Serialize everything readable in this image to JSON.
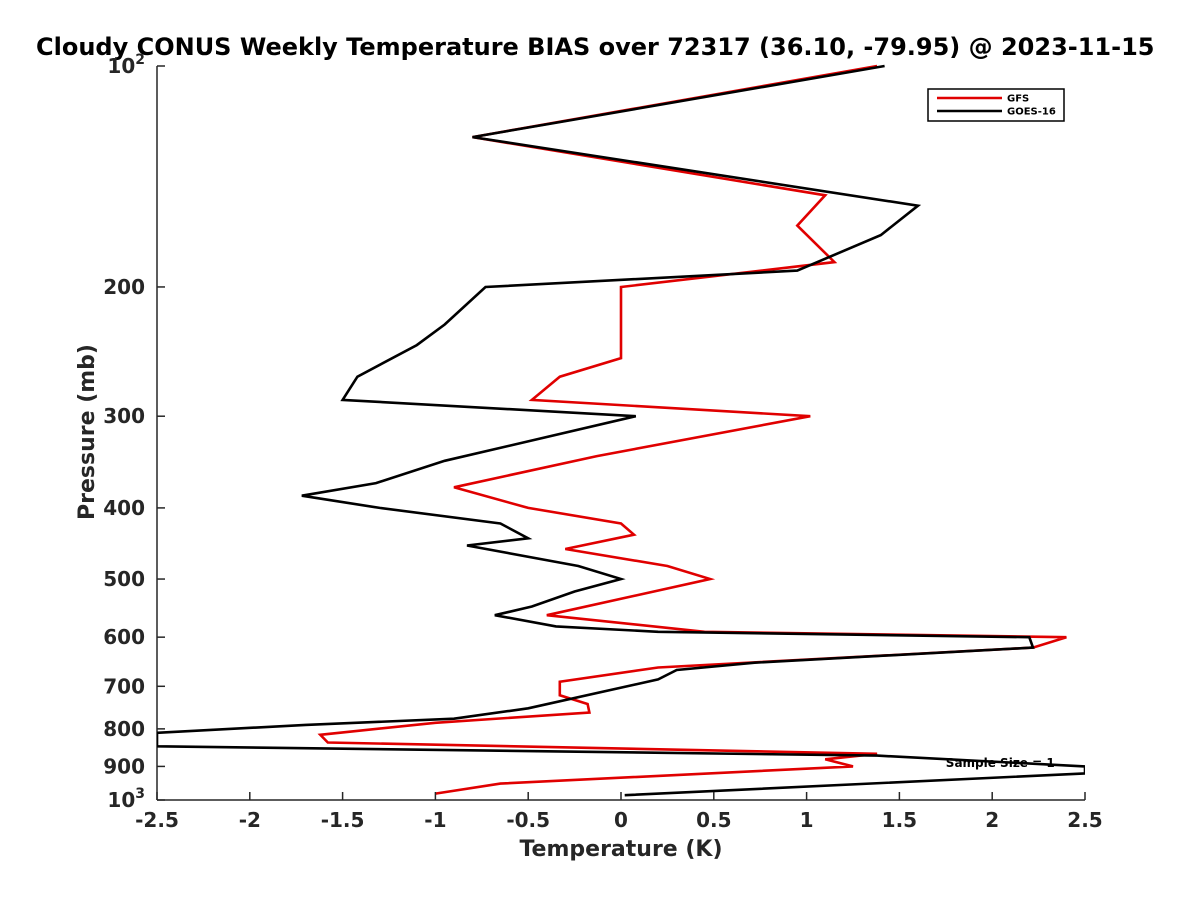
{
  "chart_data": {
    "type": "line",
    "title": "Cloudy CONUS Weekly Temperature BIAS over 72317 (36.10, -79.95) @ 2023-11-15",
    "xlabel": "Temperature (K)",
    "ylabel": "Pressure (mb)",
    "xlim": [
      -2.5,
      2.5
    ],
    "ylim": [
      100,
      1000
    ],
    "y_scale": "log",
    "y_reversed": true,
    "grid": false,
    "legend_position": "top-right",
    "x_ticks": [
      "-2.5",
      "-2",
      "-1.5",
      "-1",
      "-0.5",
      "0",
      "0.5",
      "1",
      "1.5",
      "2",
      "2.5"
    ],
    "y_ticks": [
      {
        "value": 100,
        "base": "10",
        "exp": "2"
      },
      {
        "value": 200,
        "label": "200"
      },
      {
        "value": 300,
        "label": "300"
      },
      {
        "value": 400,
        "label": "400"
      },
      {
        "value": 500,
        "label": "500"
      },
      {
        "value": 600,
        "label": "600"
      },
      {
        "value": 700,
        "label": "700"
      },
      {
        "value": 800,
        "label": "800"
      },
      {
        "value": 900,
        "label": "900"
      },
      {
        "value": 1000,
        "base": "10",
        "exp": "3"
      }
    ],
    "series": [
      {
        "name": "GFS",
        "color": "#e00000",
        "points": [
          [
            1.38,
            100
          ],
          [
            -0.8,
            125
          ],
          [
            1.1,
            150
          ],
          [
            0.95,
            165
          ],
          [
            1.15,
            185
          ],
          [
            0,
            200
          ],
          [
            0,
            225
          ],
          [
            0,
            250
          ],
          [
            -0.33,
            265
          ],
          [
            -0.48,
            285
          ],
          [
            1.02,
            300
          ],
          [
            -0.13,
            340
          ],
          [
            -0.9,
            375
          ],
          [
            -0.5,
            400
          ],
          [
            0,
            420
          ],
          [
            0.07,
            435
          ],
          [
            -0.3,
            455
          ],
          [
            0.25,
            480
          ],
          [
            0.48,
            500
          ],
          [
            -0.4,
            560
          ],
          [
            0.45,
            590
          ],
          [
            2.4,
            600
          ],
          [
            2.22,
            620
          ],
          [
            0.2,
            660
          ],
          [
            -0.33,
            690
          ],
          [
            -0.33,
            720
          ],
          [
            -0.18,
            740
          ],
          [
            -0.17,
            760
          ],
          [
            -1.0,
            785
          ],
          [
            -1.62,
            815
          ],
          [
            -1.58,
            835
          ],
          [
            1.38,
            865
          ],
          [
            1.1,
            880
          ],
          [
            1.25,
            900
          ],
          [
            -0.65,
            950
          ],
          [
            -1.0,
            980
          ]
        ]
      },
      {
        "name": "GOES-16",
        "color": "#000000",
        "points": [
          [
            1.42,
            100
          ],
          [
            -0.8,
            125
          ],
          [
            1.6,
            155
          ],
          [
            1.4,
            170
          ],
          [
            0.95,
            190
          ],
          [
            -0.73,
            200
          ],
          [
            -0.95,
            225
          ],
          [
            -1.1,
            240
          ],
          [
            -1.42,
            265
          ],
          [
            -1.5,
            285
          ],
          [
            0.08,
            300
          ],
          [
            -0.95,
            345
          ],
          [
            -1.32,
            370
          ],
          [
            -1.72,
            385
          ],
          [
            -1.3,
            400
          ],
          [
            -0.65,
            420
          ],
          [
            -0.5,
            440
          ],
          [
            -0.83,
            450
          ],
          [
            -0.23,
            480
          ],
          [
            0,
            500
          ],
          [
            -0.25,
            520
          ],
          [
            -0.48,
            545
          ],
          [
            -0.68,
            560
          ],
          [
            -0.35,
            580
          ],
          [
            0.2,
            590
          ],
          [
            2.2,
            600
          ],
          [
            2.22,
            620
          ],
          [
            0.72,
            650
          ],
          [
            0.3,
            665
          ],
          [
            0.2,
            685
          ],
          [
            -0.5,
            750
          ],
          [
            -0.9,
            775
          ],
          [
            -1.7,
            790
          ],
          [
            -2.5,
            810
          ],
          [
            -2.5,
            845
          ],
          [
            1.38,
            870
          ],
          [
            2.5,
            900
          ],
          [
            2.5,
            920
          ],
          [
            0.02,
            985
          ]
        ]
      }
    ],
    "annotations": [
      {
        "text": "Sample Size = 1",
        "x": 1.75,
        "y": 890
      }
    ]
  }
}
